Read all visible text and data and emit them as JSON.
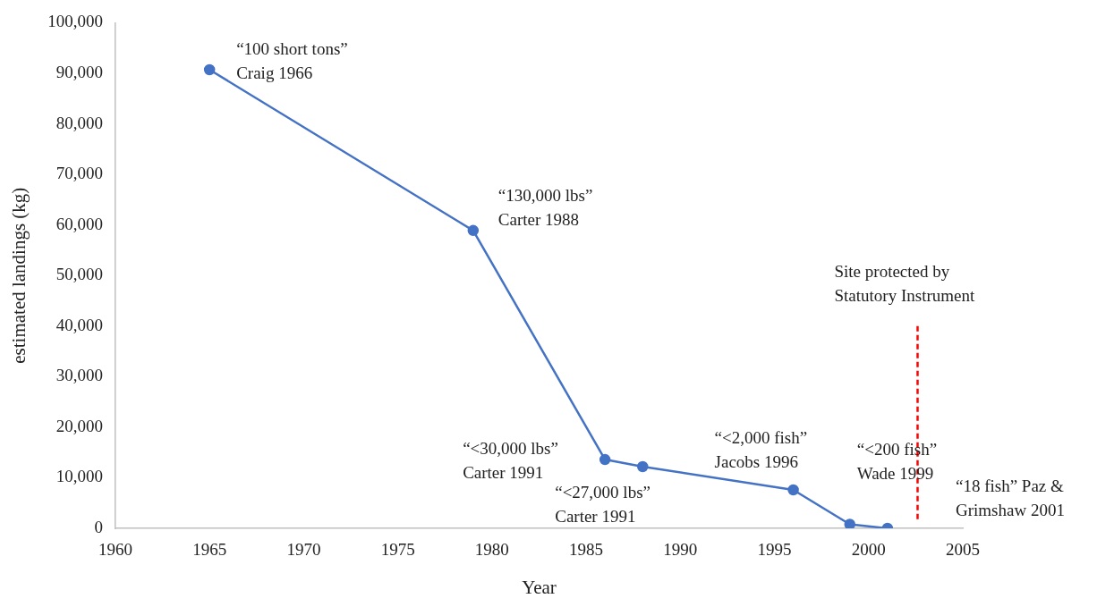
{
  "chart_data": {
    "type": "line",
    "xlabel": "Year",
    "ylabel": "estimated landings (kg)",
    "x": [
      1965,
      1979,
      1986,
      1988,
      1996,
      1999,
      2001
    ],
    "series": [
      {
        "color": "#4472c4",
        "values": [
          90700,
          58900,
          13600,
          12200,
          7600,
          800,
          0
        ]
      }
    ],
    "xlim": [
      1960,
      2005
    ],
    "xticks": [
      1960,
      1965,
      1970,
      1975,
      1980,
      1985,
      1990,
      1995,
      2000,
      2005
    ],
    "ylim": [
      0,
      100000
    ],
    "yticks": [
      {
        "value": 0,
        "label": "0"
      },
      {
        "value": 10000,
        "label": "10,000"
      },
      {
        "value": 20000,
        "label": "20,000"
      },
      {
        "value": 30000,
        "label": "30,000"
      },
      {
        "value": 40000,
        "label": "40,000"
      },
      {
        "value": 50000,
        "label": "50,000"
      },
      {
        "value": 60000,
        "label": "60,000"
      },
      {
        "value": 70000,
        "label": "70,000"
      },
      {
        "value": 80000,
        "label": "80,000"
      },
      {
        "value": 90000,
        "label": "90,000"
      },
      {
        "value": 100000,
        "label": "100,000"
      }
    ],
    "grid": false,
    "legend": false,
    "marker": "circle",
    "line_style": "solid",
    "annotations": [
      {
        "text": "“100 short tons”\nCraig 1966",
        "x": 1965,
        "y": 90700
      },
      {
        "text": "“130,000 lbs”\nCarter 1988",
        "x": 1979,
        "y": 58900
      },
      {
        "text": "“<30,000 lbs”\nCarter 1991",
        "x": 1986,
        "y": 13600
      },
      {
        "text": "“<27,000 lbs”\nCarter 1991",
        "x": 1988,
        "y": 12200
      },
      {
        "text": "“<2,000 fish”\nJacobs 1996",
        "x": 1996,
        "y": 7600
      },
      {
        "text": "“<200 fish”\nWade 1999",
        "x": 1999,
        "y": 800
      },
      "“18 fish” Paz &\nGrimshaw 2001"
    ],
    "ref_lines": [
      {
        "axis": "x",
        "value": 2002.6,
        "label": "Site protected by\nStatutory Instrument",
        "color": "#ff0000",
        "line_style": "dashed"
      }
    ]
  }
}
